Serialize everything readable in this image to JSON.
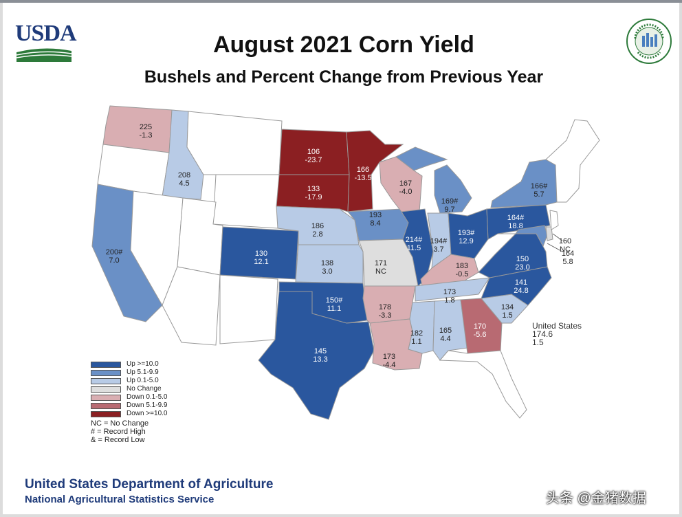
{
  "header": {
    "logo_text": "USDA",
    "title": "August 2021 Corn Yield",
    "subtitle": "Bushels and Percent Change from Previous Year",
    "seal_text": "AGRICULTURE COUNTS"
  },
  "colors": {
    "up_10": "#2a579e",
    "up_5": "#6a90c6",
    "up_0": "#b8cbe6",
    "no_change": "#dedede",
    "down_0": "#d9aeb2",
    "down_5": "#b86a72",
    "down_10": "#8b1f22",
    "no_data": "#ffffff"
  },
  "states": [
    {
      "code": "WA",
      "yield": "225",
      "change": "-1.3",
      "category": "down_0"
    },
    {
      "code": "ID",
      "yield": "208",
      "change": "4.5",
      "category": "up_0"
    },
    {
      "code": "CA",
      "yield": "200#",
      "change": "7.0",
      "category": "up_5"
    },
    {
      "code": "CO",
      "yield": "130",
      "change": "12.1",
      "category": "up_10"
    },
    {
      "code": "ND",
      "yield": "106",
      "change": "-23.7",
      "category": "down_10"
    },
    {
      "code": "SD",
      "yield": "133",
      "change": "-17.9",
      "category": "down_10"
    },
    {
      "code": "NE",
      "yield": "186",
      "change": "2.8",
      "category": "up_0"
    },
    {
      "code": "KS",
      "yield": "138",
      "change": "3.0",
      "category": "up_0"
    },
    {
      "code": "OK",
      "yield": "150#",
      "change": "11.1",
      "category": "up_10"
    },
    {
      "code": "TX",
      "yield": "145",
      "change": "13.3",
      "category": "up_10"
    },
    {
      "code": "MN",
      "yield": "166",
      "change": "-13.5",
      "category": "down_10"
    },
    {
      "code": "IA",
      "yield": "193",
      "change": "8.4",
      "category": "up_5"
    },
    {
      "code": "MO",
      "yield": "171",
      "change": "NC",
      "category": "no_change"
    },
    {
      "code": "AR",
      "yield": "178",
      "change": "-3.3",
      "category": "down_0"
    },
    {
      "code": "LA",
      "yield": "173",
      "change": "-4.4",
      "category": "down_0"
    },
    {
      "code": "WI",
      "yield": "167",
      "change": "-4.0",
      "category": "down_0"
    },
    {
      "code": "IL",
      "yield": "214#",
      "change": "11.5",
      "category": "up_10"
    },
    {
      "code": "MI",
      "yield": "169#",
      "change": "9.7",
      "category": "up_5"
    },
    {
      "code": "IN",
      "yield": "194#",
      "change": "3.7",
      "category": "up_0"
    },
    {
      "code": "OH",
      "yield": "193#",
      "change": "12.9",
      "category": "up_10"
    },
    {
      "code": "KY",
      "yield": "183",
      "change": "-0.5",
      "category": "down_0"
    },
    {
      "code": "TN",
      "yield": "173",
      "change": "1.8",
      "category": "up_0"
    },
    {
      "code": "MS",
      "yield": "182",
      "change": "1.1",
      "category": "up_0"
    },
    {
      "code": "AL",
      "yield": "165",
      "change": "4.4",
      "category": "up_0"
    },
    {
      "code": "GA",
      "yield": "170",
      "change": "-5.6",
      "category": "down_5"
    },
    {
      "code": "SC",
      "yield": "134",
      "change": "1.5",
      "category": "up_0"
    },
    {
      "code": "NC",
      "yield": "141",
      "change": "24.8",
      "category": "up_10"
    },
    {
      "code": "VA",
      "yield": "150",
      "change": "23.0",
      "category": "up_10"
    },
    {
      "code": "PA",
      "yield": "164#",
      "change": "18.8",
      "category": "up_10"
    },
    {
      "code": "NY",
      "yield": "166#",
      "change": "5.7",
      "category": "up_5"
    },
    {
      "code": "DE",
      "yield": "160",
      "change": "NC",
      "category": "no_change"
    },
    {
      "code": "MD",
      "yield": "164",
      "change": "5.8",
      "category": "up_5"
    }
  ],
  "us_total": {
    "name": "United States",
    "yield": "174.6",
    "change": "1.5"
  },
  "legend": {
    "items": [
      {
        "label": "Up >=10.0",
        "category": "up_10"
      },
      {
        "label": "Up 5.1-9.9",
        "category": "up_5"
      },
      {
        "label": "Up 0.1-5.0",
        "category": "up_0"
      },
      {
        "label": "No Change",
        "category": "no_change"
      },
      {
        "label": "Down 0.1-5.0",
        "category": "down_0"
      },
      {
        "label": "Down 5.1-9.9",
        "category": "down_5"
      },
      {
        "label": "Down >=10.0",
        "category": "down_10"
      }
    ],
    "notes": [
      "NC = No Change",
      "# = Record High",
      "& = Record Low"
    ]
  },
  "footer": {
    "line1": "United States Department of Agriculture",
    "line2": "National Agricultural Statistics Service"
  },
  "watermark": "头条 @金猪数据"
}
